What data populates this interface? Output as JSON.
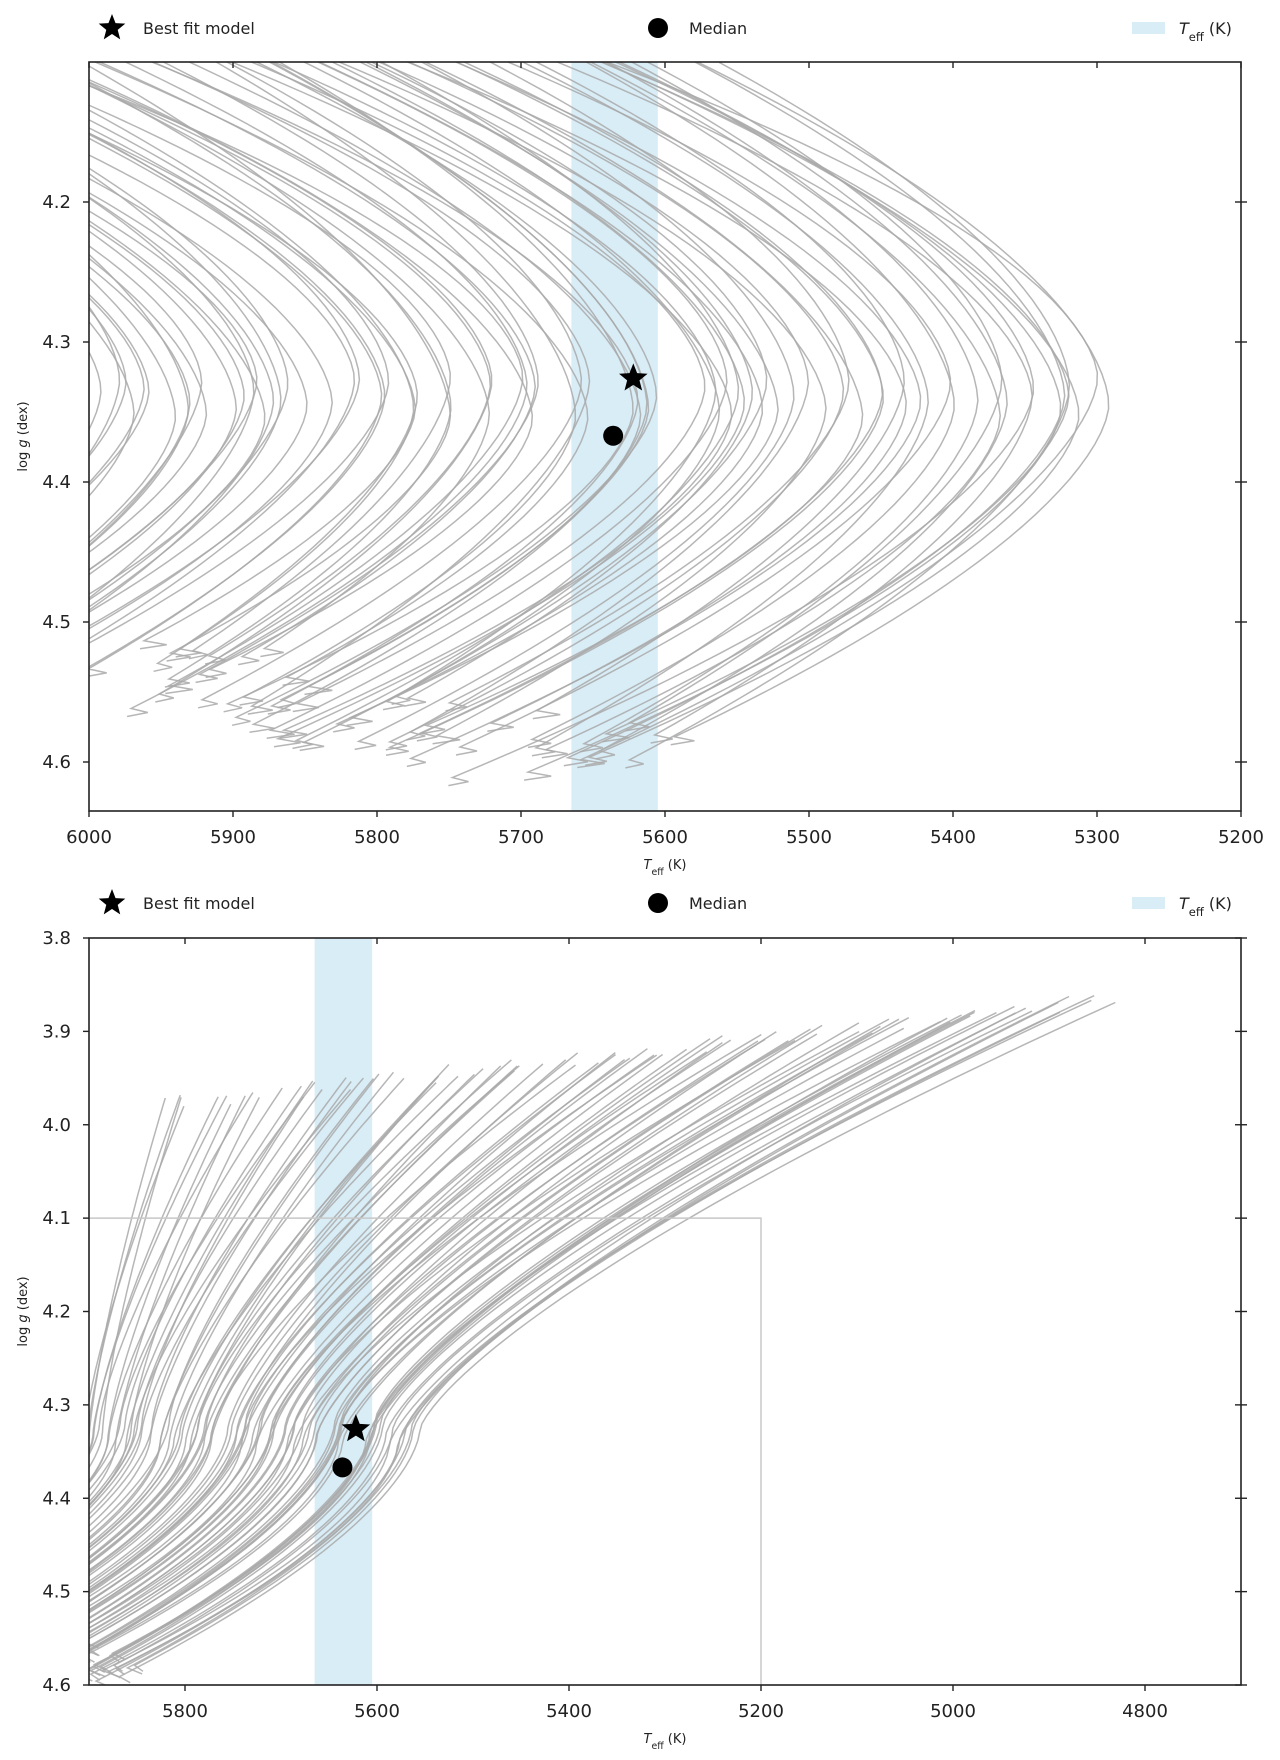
{
  "chart_data": [
    {
      "type": "line",
      "legend": [
        {
          "marker": "star",
          "label": "Best fit model"
        },
        {
          "marker": "circle",
          "label": "Median"
        },
        {
          "marker": "band",
          "label_base": "T",
          "label_sub": "eff",
          "label_rest": " (K)"
        }
      ],
      "xlabel": {
        "base": "T",
        "sub": "eff",
        "rest": " (K)"
      },
      "ylabel": {
        "pre": "log ",
        "italic": "g",
        "post": " (dex)"
      },
      "xlim": [
        6000,
        5200
      ],
      "ylim": [
        4.635,
        4.1
      ],
      "xticks": [
        6000,
        5900,
        5800,
        5700,
        5600,
        5500,
        5400,
        5300,
        5200
      ],
      "xtick_labels": [
        "6000",
        "5900",
        "5800",
        "5700",
        "5600",
        "5500",
        "5400",
        "5300",
        "5200"
      ],
      "yticks": [
        4.2,
        4.3,
        4.4,
        4.5,
        4.6
      ],
      "ytick_labels": [
        "4.2",
        "4.3",
        "4.4",
        "4.5",
        "4.6"
      ],
      "teff_band": [
        5605,
        5665
      ],
      "best_fit": {
        "teff": 5622,
        "logg": 4.326
      },
      "median": {
        "teff": 5636,
        "logg": 4.367
      },
      "tracks": {
        "count": 90,
        "teff_min_range": [
          5285,
          6010
        ],
        "logg_turn": 4.34,
        "band_color": "#d9edf7",
        "track_color": "#a9a9a9"
      },
      "grid": false,
      "legend_placement": "top, above plot"
    },
    {
      "type": "line",
      "legend": [
        {
          "marker": "star",
          "label": "Best fit model"
        },
        {
          "marker": "circle",
          "label": "Median"
        },
        {
          "marker": "band",
          "label_base": "T",
          "label_sub": "eff",
          "label_rest": " (K)"
        }
      ],
      "xlabel": {
        "base": "T",
        "sub": "eff",
        "rest": " (K)"
      },
      "ylabel": {
        "pre": "log ",
        "italic": "g",
        "post": " (dex)"
      },
      "xlim": [
        5900,
        4700
      ],
      "ylim": [
        4.6,
        3.8
      ],
      "xticks": [
        5800,
        5600,
        5400,
        5200,
        5000,
        4800
      ],
      "xtick_labels": [
        "5800",
        "5600",
        "5400",
        "5200",
        "5000",
        "4800"
      ],
      "yticks": [
        3.8,
        3.9,
        4.0,
        4.1,
        4.2,
        4.3,
        4.4,
        4.5,
        4.6
      ],
      "ytick_labels": [
        "3.8",
        "3.9",
        "4.0",
        "4.1",
        "4.2",
        "4.3",
        "4.4",
        "4.5",
        "4.6"
      ],
      "teff_band": [
        5605,
        5665
      ],
      "best_fit": {
        "teff": 5622,
        "logg": 4.326
      },
      "median": {
        "teff": 5636,
        "logg": 4.367
      },
      "inset_box": {
        "teff": [
          5900,
          5200
        ],
        "logg": [
          4.1,
          4.6
        ]
      },
      "tracks": {
        "count": 90,
        "logg_top_range": [
          3.855,
          3.97
        ],
        "band_color": "#d9edf7",
        "track_color": "#a9a9a9"
      },
      "grid": false,
      "legend_placement": "top, above plot"
    }
  ]
}
